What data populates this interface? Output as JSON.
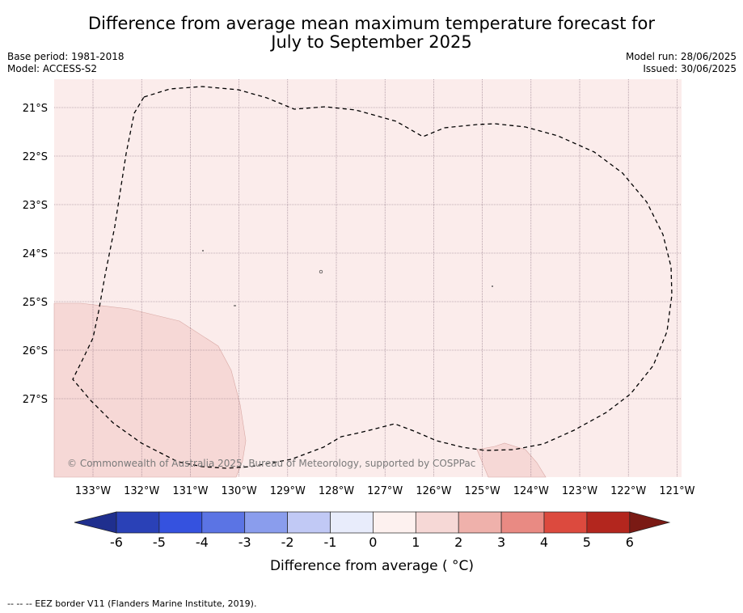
{
  "title": {
    "line1": "Difference from average mean maximum temperature forecast for",
    "line2": "July to September 2025"
  },
  "meta": {
    "base_period": "Base period: 1981-2018",
    "model": "Model: ACCESS-S2",
    "model_run": "Model run: 28/06/2025",
    "issued": "Issued: 30/06/2025"
  },
  "map": {
    "lat_labels": [
      "21°S",
      "22°S",
      "23°S",
      "24°S",
      "25°S",
      "26°S",
      "27°S"
    ],
    "lon_labels": [
      "133°W",
      "132°W",
      "131°W",
      "130°W",
      "129°W",
      "128°W",
      "127°W",
      "126°W",
      "125°W",
      "124°W",
      "123°W",
      "122°W",
      "121°W"
    ],
    "background_color": "#fbeceb",
    "warm_patch_color": "#f6d8d6",
    "copyright": "© Commonwealth of Australia 2025, Bureau of Meteorology, supported by COSPPac"
  },
  "colorbar": {
    "ticks": [
      "-6",
      "-5",
      "-4",
      "-3",
      "-2",
      "-1",
      "0",
      "1",
      "2",
      "3",
      "4",
      "5",
      "6"
    ],
    "colors": [
      "#1f2f8e",
      "#2a41b7",
      "#3552df",
      "#5b74e4",
      "#8a9ded",
      "#c1c9f5",
      "#e8ecfb",
      "#fdf1ef",
      "#f6d8d6",
      "#efb1ab",
      "#e98a83",
      "#dc4a3e",
      "#b3261e",
      "#7a1a14"
    ],
    "label": "Difference from average ( °C)"
  },
  "footer": "--  --  -- EEZ border V11 (Flanders Marine Institute, 2019)."
}
